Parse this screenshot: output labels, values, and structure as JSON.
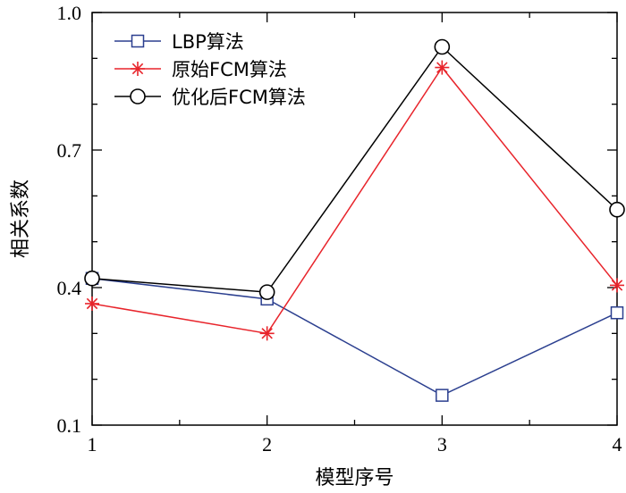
{
  "chart_data": {
    "type": "line",
    "xlabel": "模型序号",
    "ylabel": "相关系数",
    "x": [
      1,
      2,
      3,
      4
    ],
    "xticks": [
      "1",
      "2",
      "3",
      "4"
    ],
    "yticks": [
      "0.1",
      "0.4",
      "0.7",
      "1.0"
    ],
    "xlim": [
      1,
      4
    ],
    "ylim": [
      0.1,
      1.0
    ],
    "grid": false,
    "legend_position": "top-left",
    "series": [
      {
        "name": "LBP算法",
        "values": [
          0.42,
          0.375,
          0.165,
          0.345
        ],
        "color": "#2b3f8f",
        "marker": "square"
      },
      {
        "name": "原始FCM算法",
        "values": [
          0.365,
          0.3,
          0.88,
          0.405
        ],
        "color": "#e8242b",
        "marker": "asterisk"
      },
      {
        "name": "优化后FCM算法",
        "values": [
          0.42,
          0.39,
          0.925,
          0.57
        ],
        "color": "#000000",
        "marker": "circle"
      }
    ]
  }
}
